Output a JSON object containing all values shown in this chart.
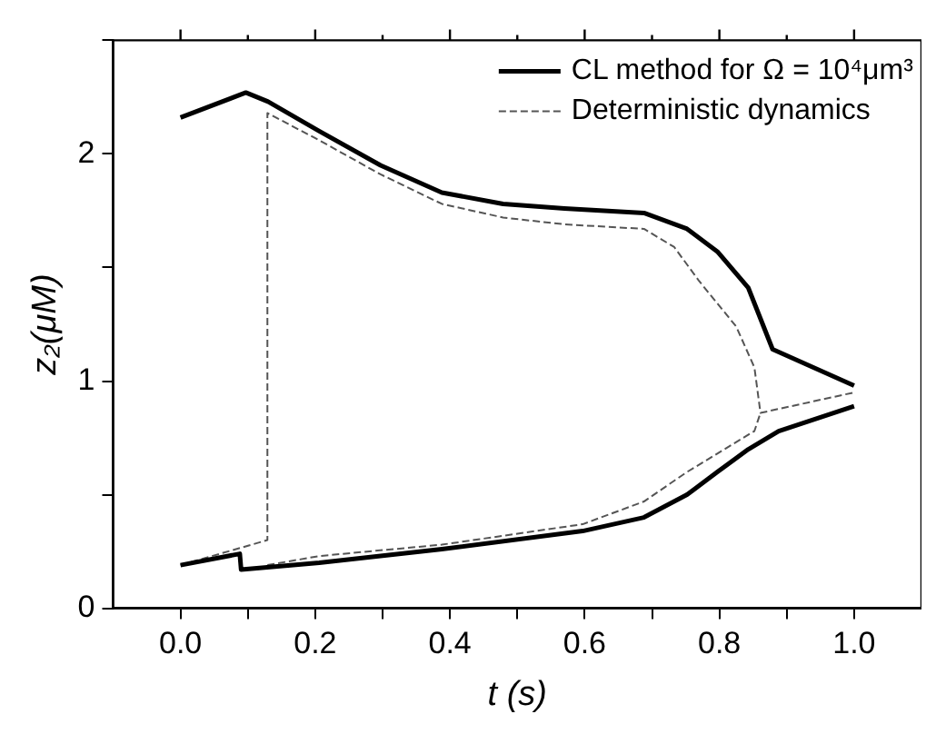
{
  "chart_data": {
    "type": "line",
    "xlabel": "t (s)",
    "ylabel": "z₂(μM)",
    "xlim": [
      -0.1,
      1.1
    ],
    "ylim": [
      0,
      2.5
    ],
    "xticks": [
      {
        "value": 0,
        "label": "0.0"
      },
      {
        "value": 0.1,
        "label": null
      },
      {
        "value": 0.2,
        "label": "0.2"
      },
      {
        "value": 0.3,
        "label": null
      },
      {
        "value": 0.4,
        "label": "0.4"
      },
      {
        "value": 0.5,
        "label": null
      },
      {
        "value": 0.6,
        "label": "0.6"
      },
      {
        "value": 0.7,
        "label": null
      },
      {
        "value": 0.8,
        "label": "0.8"
      },
      {
        "value": 0.9,
        "label": null
      },
      {
        "value": 1,
        "label": "1.0"
      }
    ],
    "yticks": [
      0,
      {
        "value": 0.5,
        "label": null
      },
      1,
      {
        "value": 1.5,
        "label": null
      },
      2,
      {
        "value": 2.5,
        "label": null
      }
    ],
    "grid": false,
    "legend": "top right",
    "marker": "none",
    "series": [
      {
        "name": "CL method for Ω = 10⁴μm³",
        "color": "#000000",
        "line_style": "solid",
        "x": [
          0,
          0.097,
          0.13,
          0.206,
          0.297,
          0.388,
          0.479,
          0.57,
          0.688,
          0.752,
          0.797,
          0.843,
          0.879,
          1.0
        ],
        "values": [
          2.16,
          2.27,
          2.23,
          2.1,
          1.95,
          1.83,
          1.78,
          1.76,
          1.74,
          1.67,
          1.57,
          1.41,
          1.14,
          0.98
        ]
      },
      {
        "color": "#000000",
        "line_style": "solid",
        "x": [
          0,
          0.088,
          0.09,
          0.206,
          0.388,
          0.597,
          0.688,
          0.752,
          0.797,
          0.843,
          0.888,
          1.0
        ],
        "values": [
          0.19,
          0.24,
          0.17,
          0.2,
          0.26,
          0.34,
          0.4,
          0.5,
          0.6,
          0.7,
          0.78,
          0.89
        ]
      },
      {
        "name": "Deterministic dynamics",
        "color": "#555555",
        "line_style": "dashed",
        "x": [
          0,
          0.129,
          0.129,
          0.206,
          0.297,
          0.388,
          0.479,
          0.57,
          0.688,
          0.733,
          0.77,
          0.825,
          0.852,
          0.861,
          1.0
        ],
        "values": [
          0.19,
          0.3,
          2.18,
          2.06,
          1.91,
          1.78,
          1.72,
          1.69,
          1.67,
          1.59,
          1.44,
          1.24,
          1.06,
          0.86,
          0.95
        ]
      },
      {
        "color": "#555555",
        "line_style": "dashed",
        "x": [
          0.129,
          0.206,
          0.388,
          0.597,
          0.688,
          0.752,
          0.852,
          0.861
        ],
        "values": [
          0.19,
          0.23,
          0.28,
          0.37,
          0.47,
          0.6,
          0.78,
          0.86
        ]
      }
    ]
  }
}
